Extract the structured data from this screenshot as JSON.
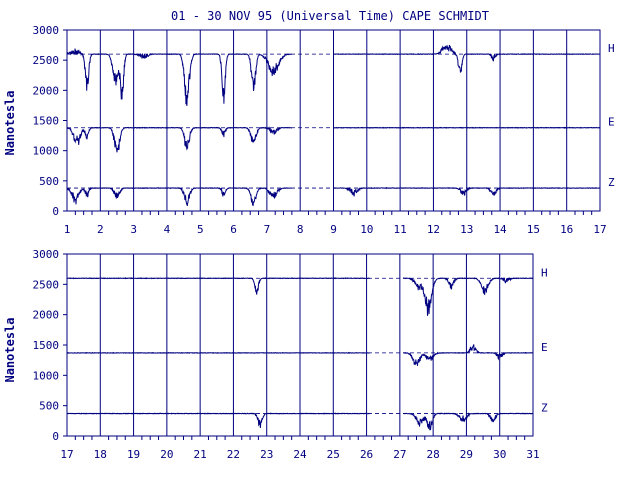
{
  "title": "01 - 30 NOV 95 (Universal Time) CAPE SCHMIDT",
  "colors": {
    "ink": "#000080",
    "background": "#ffffff"
  },
  "chart_data": [
    {
      "type": "line",
      "ylabel": "Nanotesla",
      "xlim": [
        1,
        17
      ],
      "ylim": [
        0,
        3000
      ],
      "xticks": [
        "1",
        "2",
        "3",
        "4",
        "5",
        "6",
        "7",
        "8",
        "9",
        "10",
        "11",
        "12",
        "13",
        "14",
        "15",
        "16",
        "17"
      ],
      "yticks": [
        "3000",
        "2500",
        "2000",
        "1500",
        "1000",
        "500",
        "0"
      ],
      "grid": "vertical day lines",
      "data_end_day": 7.75,
      "gap": [
        7.75,
        9.0
      ],
      "series": [
        {
          "name": "H",
          "baseline": 2600,
          "disturbances": [
            [
              1.25,
              2650,
              0.25
            ],
            [
              1.6,
              1900,
              0.1
            ],
            [
              2.45,
              2050,
              0.15
            ],
            [
              2.65,
              1800,
              0.1
            ],
            [
              3.3,
              2550,
              0.2
            ],
            [
              4.6,
              1700,
              0.15
            ],
            [
              5.7,
              1800,
              0.1
            ],
            [
              6.6,
              1900,
              0.12
            ],
            [
              7.2,
              2250,
              0.3
            ],
            [
              12.4,
              2750,
              0.25
            ],
            [
              12.8,
              2200,
              0.1
            ],
            [
              13.8,
              2500,
              0.1
            ]
          ]
        },
        {
          "name": "E",
          "baseline": 1380,
          "disturbances": [
            [
              1.3,
              1100,
              0.2
            ],
            [
              1.6,
              1200,
              0.1
            ],
            [
              2.5,
              900,
              0.15
            ],
            [
              4.6,
              1000,
              0.15
            ],
            [
              5.7,
              1250,
              0.1
            ],
            [
              6.6,
              1100,
              0.15
            ],
            [
              7.2,
              1300,
              0.2
            ]
          ]
        },
        {
          "name": "Z",
          "baseline": 380,
          "disturbances": [
            [
              1.25,
              150,
              0.2
            ],
            [
              1.6,
              250,
              0.1
            ],
            [
              2.5,
              200,
              0.15
            ],
            [
              4.6,
              100,
              0.15
            ],
            [
              5.7,
              250,
              0.1
            ],
            [
              6.6,
              80,
              0.15
            ],
            [
              7.2,
              200,
              0.2
            ],
            [
              9.6,
              280,
              0.2
            ],
            [
              12.9,
              270,
              0.15
            ],
            [
              13.8,
              260,
              0.15
            ]
          ]
        }
      ]
    },
    {
      "type": "line",
      "ylabel": "Nanotesla",
      "xlim": [
        17,
        31
      ],
      "ylim": [
        0,
        3000
      ],
      "xticks": [
        "17",
        "18",
        "19",
        "20",
        "21",
        "22",
        "23",
        "24",
        "25",
        "26",
        "27",
        "28",
        "29",
        "30",
        "31"
      ],
      "yticks": [
        "3000",
        "2500",
        "2000",
        "1500",
        "1000",
        "500",
        "0"
      ],
      "grid": "vertical day lines",
      "gap": [
        26.1,
        27.1
      ],
      "series": [
        {
          "name": "H",
          "baseline": 2600,
          "disturbances": [
            [
              22.7,
              2300,
              0.1
            ],
            [
              27.55,
              2450,
              0.2
            ],
            [
              27.85,
              2000,
              0.2
            ],
            [
              28.55,
              2450,
              0.15
            ],
            [
              29.55,
              2350,
              0.2
            ],
            [
              30.2,
              2550,
              0.15
            ]
          ]
        },
        {
          "name": "E",
          "baseline": 1370,
          "disturbances": [
            [
              27.5,
              1150,
              0.2
            ],
            [
              27.9,
              1250,
              0.2
            ],
            [
              29.2,
              1500,
              0.15
            ],
            [
              30.0,
              1300,
              0.15
            ]
          ]
        },
        {
          "name": "Z",
          "baseline": 370,
          "disturbances": [
            [
              22.8,
              120,
              0.12
            ],
            [
              27.6,
              170,
              0.2
            ],
            [
              27.9,
              100,
              0.15
            ],
            [
              28.9,
              240,
              0.2
            ],
            [
              29.8,
              250,
              0.15
            ]
          ]
        }
      ]
    }
  ]
}
